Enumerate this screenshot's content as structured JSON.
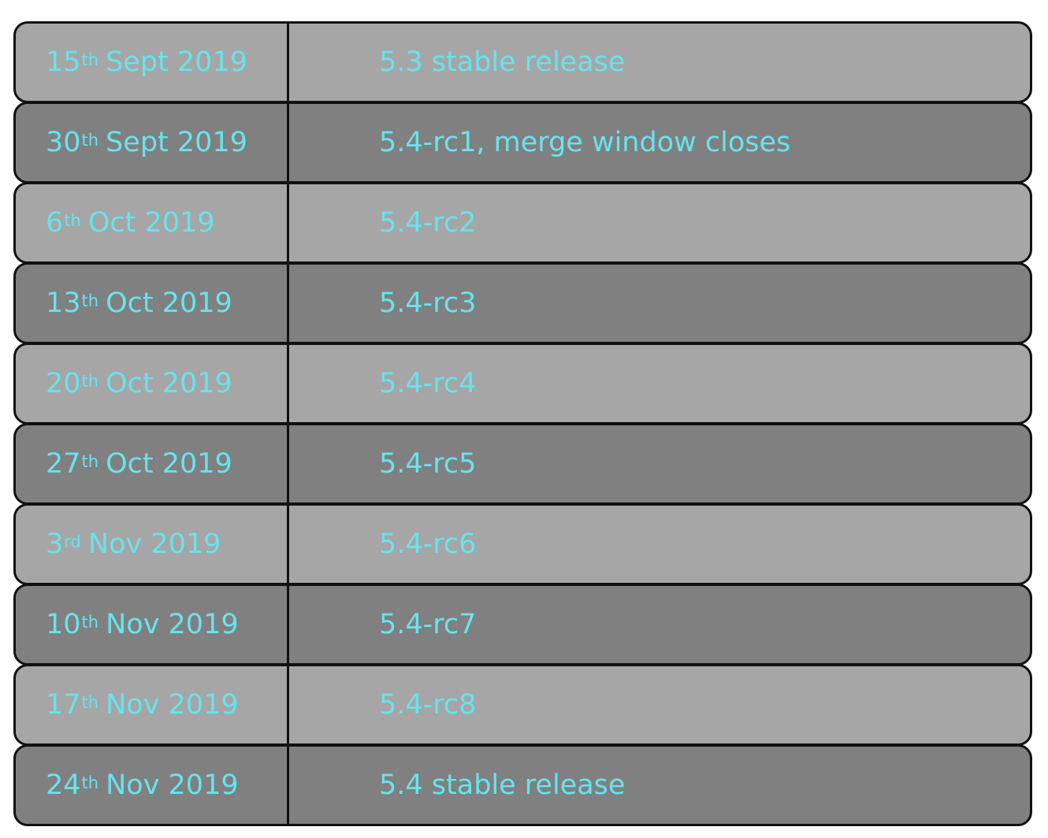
{
  "colors": {
    "text": "#66e4ef",
    "row_light": "#a6a6a6",
    "row_dark": "#808080",
    "border": "#111111"
  },
  "rows": [
    {
      "day": "15",
      "suffix": "th",
      "rest": "Sept 2019",
      "event": "5.3 stable release",
      "shade": "light"
    },
    {
      "day": "30",
      "suffix": "th",
      "rest": "Sept 2019",
      "event": "5.4-rc1, merge window closes",
      "shade": "dark"
    },
    {
      "day": "6",
      "suffix": "th",
      "rest": "Oct 2019",
      "event": "5.4-rc2",
      "shade": "light"
    },
    {
      "day": "13",
      "suffix": "th",
      "rest": "Oct 2019",
      "event": "5.4-rc3",
      "shade": "dark"
    },
    {
      "day": "20",
      "suffix": "th",
      "rest": "Oct 2019",
      "event": "5.4-rc4",
      "shade": "light"
    },
    {
      "day": "27",
      "suffix": "th",
      "rest": "Oct 2019",
      "event": "5.4-rc5",
      "shade": "dark"
    },
    {
      "day": "3",
      "suffix": "rd",
      "rest": "Nov 2019",
      "event": "5.4-rc6",
      "shade": "light"
    },
    {
      "day": "10",
      "suffix": "th",
      "rest": "Nov 2019",
      "event": "5.4-rc7",
      "shade": "dark"
    },
    {
      "day": "17",
      "suffix": "th",
      "rest": "Nov 2019",
      "event": "5.4-rc8",
      "shade": "light"
    },
    {
      "day": "24",
      "suffix": "th",
      "rest": "Nov 2019",
      "event": "5.4 stable release",
      "shade": "dark"
    }
  ]
}
